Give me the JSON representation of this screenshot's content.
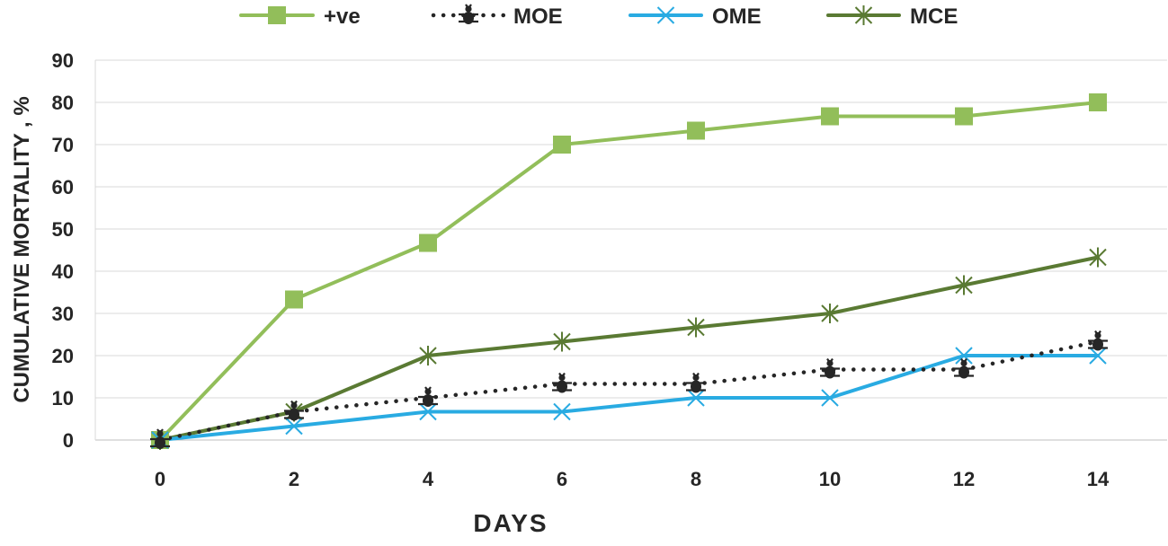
{
  "chart_data": {
    "type": "line",
    "title": "",
    "xlabel": "DAYS",
    "ylabel": "CUMULATIVE MORTALITY , %",
    "x": [
      0,
      2,
      4,
      6,
      8,
      10,
      12,
      14
    ],
    "x_tick_labels": [
      "0",
      "2",
      "4",
      "6",
      "8",
      "10",
      "12",
      "14"
    ],
    "y_tick_labels": [
      "0",
      "10",
      "20",
      "30",
      "40",
      "50",
      "60",
      "70",
      "80",
      "90"
    ],
    "ylim": [
      0,
      90
    ],
    "grid": "horizontal",
    "legend_position": "top",
    "series": [
      {
        "name": "+ve",
        "color": "#92BE5A",
        "marker": "square",
        "line": "solid",
        "values": [
          0,
          33.3,
          46.7,
          70,
          73.3,
          76.7,
          76.7,
          80
        ]
      },
      {
        "name": "MOE",
        "color": "#262626",
        "marker": "bug",
        "line": "dotted",
        "values": [
          0,
          6.7,
          10,
          13.3,
          13.3,
          16.7,
          16.7,
          23.3
        ]
      },
      {
        "name": "OME",
        "color": "#29ABE2",
        "marker": "x",
        "line": "solid",
        "values": [
          0,
          3.3,
          6.7,
          6.7,
          10,
          10,
          20,
          20
        ]
      },
      {
        "name": "MCE",
        "color": "#5A7A33",
        "marker": "star",
        "line": "solid",
        "values": [
          0,
          6.7,
          20,
          23.3,
          26.7,
          30,
          36.7,
          43.3
        ]
      }
    ]
  }
}
